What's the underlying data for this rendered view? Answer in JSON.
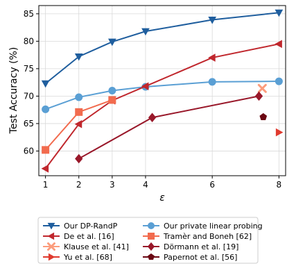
{
  "chart_data": {
    "type": "line",
    "xlabel": "ε",
    "ylabel": "Test Accuracy (%)",
    "xlim": [
      0.8,
      8.2
    ],
    "ylim": [
      55.5,
      86.5
    ],
    "xticks": [
      1,
      2,
      3,
      4,
      6,
      8
    ],
    "yticks": [
      60,
      65,
      70,
      75,
      80,
      85
    ],
    "grid": true,
    "legend_position": "bottom",
    "series": [
      {
        "name": "Our DP-RandP",
        "color": "#1f5e9e",
        "marker": "triangle-down",
        "x": [
          1,
          2,
          3,
          4,
          6,
          8
        ],
        "y": [
          72.3,
          77.2,
          79.9,
          81.8,
          83.9,
          85.2
        ]
      },
      {
        "name": "Our private linear probing",
        "color": "#5a9fd4",
        "marker": "circle",
        "x": [
          1,
          2,
          3,
          4,
          6,
          8
        ],
        "y": [
          67.6,
          69.8,
          71.0,
          71.7,
          72.6,
          72.7
        ]
      },
      {
        "name": "De et al. [16]",
        "color": "#c0272d",
        "marker": "triangle-left",
        "x": [
          1,
          2,
          3,
          4,
          6,
          8
        ],
        "y": [
          56.8,
          64.9,
          69.2,
          71.8,
          77.0,
          79.5
        ]
      },
      {
        "name": "Tramèr and Boneh [62]",
        "color": "#f26b4e",
        "marker": "square",
        "x": [
          1,
          2,
          3
        ],
        "y": [
          60.2,
          67.1,
          69.3
        ]
      },
      {
        "name": "Klause et al. [41]",
        "color": "#fc9c7c",
        "marker": "x",
        "x": [
          7.5
        ],
        "y": [
          71.4
        ]
      },
      {
        "name": "Dörmann et al. [19]",
        "color": "#99182a",
        "marker": "diamond",
        "x": [
          2,
          4.2,
          7.4
        ],
        "y": [
          58.6,
          66.1,
          70.0
        ]
      },
      {
        "name": "Yu et al. [68]",
        "color": "#e03a2e",
        "marker": "triangle-right",
        "x": [
          8
        ],
        "y": [
          63.4
        ]
      },
      {
        "name": "Papernot et al. [56]",
        "color": "#6b0612",
        "marker": "pentagon",
        "x": [
          7.53
        ],
        "y": [
          66.2
        ]
      }
    ]
  }
}
